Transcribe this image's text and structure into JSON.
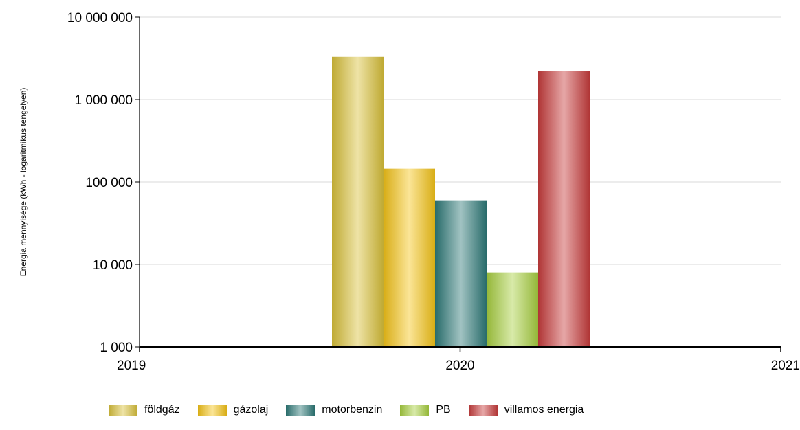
{
  "chart_data": {
    "type": "bar",
    "x_ticks": [
      "2019",
      "2020",
      "2021"
    ],
    "x_category": "2020",
    "ylabel": "Energia mennyisége (kWh - logaritmikus tengelyen)",
    "yscale": "log",
    "ylim": [
      1000,
      10000000
    ],
    "y_ticks": [
      {
        "value": 1000,
        "label": "1 000"
      },
      {
        "value": 10000,
        "label": "10 000"
      },
      {
        "value": 100000,
        "label": "100 000"
      },
      {
        "value": 1000000,
        "label": "1 000 000"
      },
      {
        "value": 10000000,
        "label": "10 000 000"
      }
    ],
    "grid": true,
    "legend_position": "bottom",
    "series": [
      {
        "name": "földgáz",
        "value": 3300000,
        "color": "#d9c13a"
      },
      {
        "name": "gázolaj",
        "value": 145000,
        "color": "#f5c518"
      },
      {
        "name": "motorbenzin",
        "value": 60000,
        "color": "#2e7a78"
      },
      {
        "name": "PB",
        "value": 8000,
        "color": "#a8d040"
      },
      {
        "name": "villamos energia",
        "value": 2200000,
        "color": "#c83c3c"
      }
    ]
  }
}
